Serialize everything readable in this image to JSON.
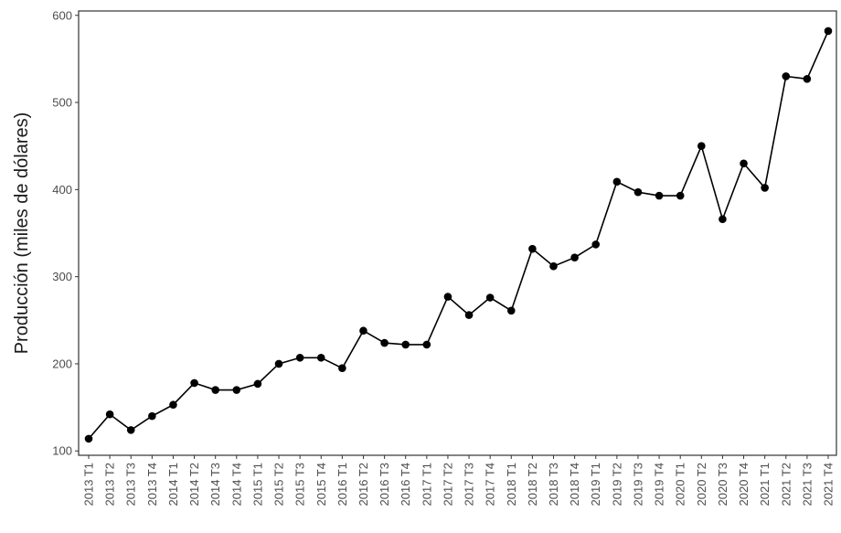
{
  "chart_data": {
    "type": "line",
    "title": "",
    "xlabel": "",
    "ylabel": "Producción (miles de dólares)",
    "ylim": [
      95,
      605
    ],
    "yticks": [
      100,
      200,
      300,
      400,
      500,
      600
    ],
    "grid": false,
    "categories": [
      "2013 T1",
      "2013 T2",
      "2013 T3",
      "2013 T4",
      "2014 T1",
      "2014 T2",
      "2014 T3",
      "2014 T4",
      "2015 T1",
      "2015 T2",
      "2015 T3",
      "2015 T4",
      "2016 T1",
      "2016 T2",
      "2016 T3",
      "2016 T4",
      "2017 T1",
      "2017 T2",
      "2017 T3",
      "2017 T4",
      "2018 T1",
      "2018 T2",
      "2018 T3",
      "2018 T4",
      "2019 T1",
      "2019 T2",
      "2019 T3",
      "2019 T4",
      "2020 T1",
      "2020 T2",
      "2020 T3",
      "2020 T4",
      "2021 T1",
      "2021 T2",
      "2021 T3",
      "2021 T4"
    ],
    "series": [
      {
        "values": [
          114,
          142,
          124,
          140,
          153,
          178,
          170,
          170,
          177,
          200,
          207,
          207,
          195,
          238,
          224,
          222,
          222,
          277,
          256,
          276,
          261,
          332,
          312,
          322,
          337,
          409,
          397,
          393,
          393,
          450,
          366,
          430,
          402,
          530,
          527,
          582
        ],
        "color": "#000000"
      }
    ]
  }
}
